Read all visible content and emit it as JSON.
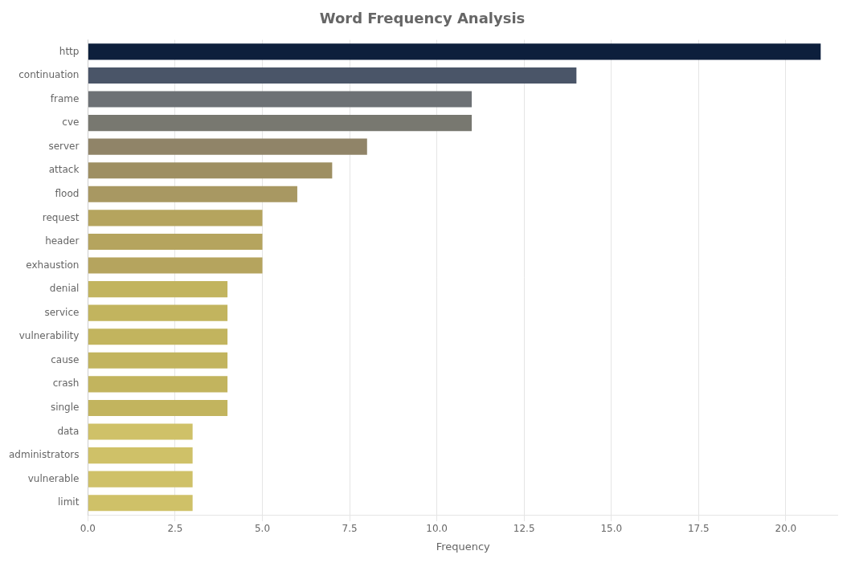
{
  "chart_data": {
    "type": "bar",
    "orientation": "horizontal",
    "title": "Word Frequency Analysis",
    "xlabel": "Frequency",
    "categories": [
      "http",
      "continuation",
      "frame",
      "cve",
      "server",
      "attack",
      "flood",
      "request",
      "header",
      "exhaustion",
      "denial",
      "service",
      "vulnerability",
      "cause",
      "crash",
      "single",
      "data",
      "administrators",
      "vulnerable",
      "limit"
    ],
    "values": [
      21,
      14,
      11,
      11,
      8,
      7,
      6,
      5,
      5,
      5,
      4,
      4,
      4,
      4,
      4,
      4,
      3,
      3,
      3,
      3
    ],
    "colors": [
      "#0d1f3c",
      "#4a5568",
      "#6d7175",
      "#787870",
      "#908468",
      "#9e8f62",
      "#a89862",
      "#b5a45e",
      "#b5a45e",
      "#b5a45e",
      "#c2b45e",
      "#c2b45e",
      "#c2b45e",
      "#c2b45e",
      "#c2b45e",
      "#c2b45e",
      "#cfc168",
      "#cfc168",
      "#cfc168",
      "#cfc168"
    ],
    "xlim": [
      0,
      21.5
    ],
    "xticks": [
      {
        "value": 0,
        "label": "0.0"
      },
      2.5,
      {
        "value": 5,
        "label": "5.0"
      },
      7.5,
      {
        "value": 10,
        "label": "10.0"
      },
      12.5,
      {
        "value": 15,
        "label": "15.0"
      },
      17.5,
      {
        "value": 20,
        "label": "20.0"
      }
    ],
    "grid": true
  }
}
